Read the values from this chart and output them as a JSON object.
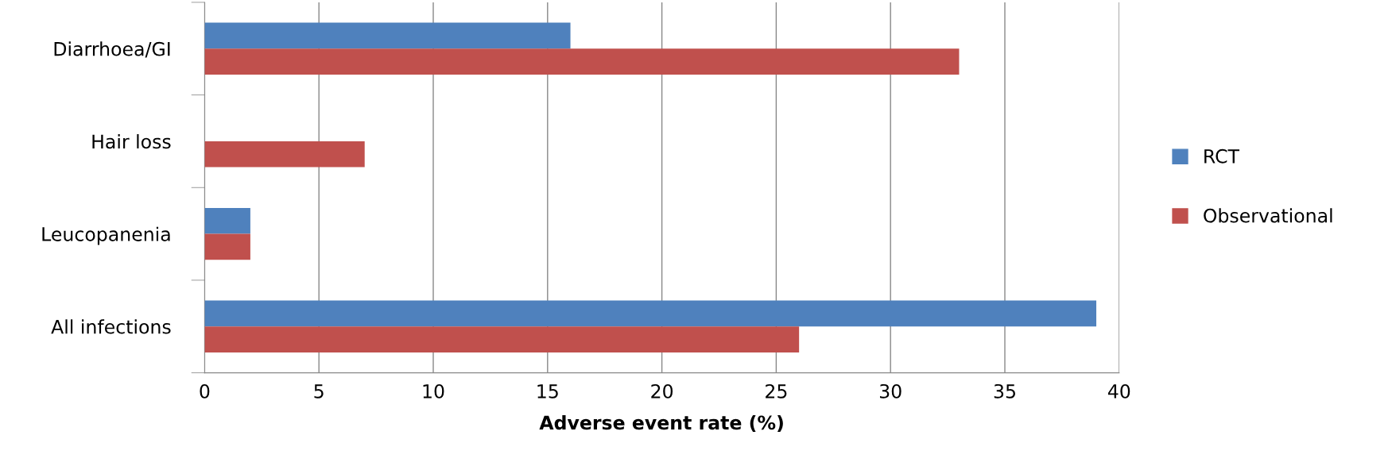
{
  "chart_data": {
    "type": "bar",
    "orientation": "horizontal",
    "xlabel": "Adverse event rate (%)",
    "categories": [
      "Diarrhoea/GI",
      "Hair loss",
      "Leucopanenia",
      "All infections"
    ],
    "series": [
      {
        "name": "RCT",
        "color": "#4f81bd",
        "values": [
          16,
          null,
          2,
          39
        ]
      },
      {
        "name": "Observational",
        "color": "#c0504d",
        "values": [
          33,
          7,
          2,
          26
        ]
      }
    ],
    "xlim": [
      0,
      40
    ],
    "xticks": [
      0,
      5,
      10,
      15,
      20,
      25,
      30,
      35,
      40
    ],
    "grid": "x",
    "legend": "right"
  }
}
